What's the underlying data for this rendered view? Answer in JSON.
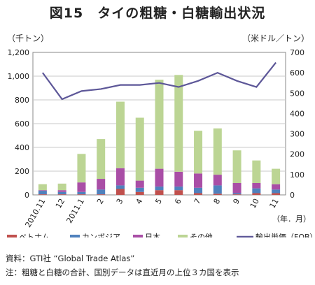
{
  "header": {
    "title": "図15　タイの粗糖・白糖輸出状況",
    "left_unit": "（千トン）",
    "right_unit": "（米ドル／トン）",
    "x_unit": "（年．月）"
  },
  "notes": {
    "source": "資料：GTI社 “Global Trade Atlas”",
    "note": "注：粗糖と白糖の合計、国別データは直近月の上位３カ国を表示"
  },
  "colors": {
    "vietnam": "#c0504d",
    "cambodia": "#4f81bd",
    "japan": "#a94ea6",
    "other": "#bcd594",
    "price_line": "#5d5798",
    "grid": "#c8c8c8",
    "axis": "#888888"
  },
  "chart_data": {
    "type": "bar",
    "stacked": true,
    "categories": [
      "2010.11",
      "12",
      "2011.1",
      "2",
      "3",
      "4",
      "5",
      "6",
      "7",
      "8",
      "9",
      "10",
      "11"
    ],
    "series": [
      {
        "name": "ベトナム",
        "values": [
          5,
          5,
          5,
          5,
          50,
          25,
          40,
          40,
          15,
          10,
          5,
          15,
          15
        ]
      },
      {
        "name": "カンボジア",
        "values": [
          30,
          20,
          20,
          40,
          30,
          35,
          30,
          30,
          45,
          70,
          10,
          40,
          30
        ]
      },
      {
        "name": "日本",
        "values": [
          5,
          15,
          80,
          90,
          145,
          60,
          150,
          125,
          120,
          90,
          85,
          45,
          45
        ]
      },
      {
        "name": "その他",
        "values": [
          50,
          55,
          240,
          335,
          560,
          530,
          750,
          815,
          360,
          390,
          275,
          190,
          130
        ]
      }
    ],
    "line_series": {
      "name": "輸出単価（FOB）",
      "values": [
        600,
        470,
        510,
        520,
        540,
        540,
        550,
        530,
        560,
        600,
        560,
        530,
        650
      ]
    },
    "ylim": [
      0,
      1200
    ],
    "yticks": [
      "0",
      "200",
      "400",
      "600",
      "800",
      "1,000",
      "1,200"
    ],
    "y2lim": [
      0,
      700
    ],
    "y2ticks": [
      "0",
      "100",
      "200",
      "300",
      "400",
      "500",
      "600",
      "700"
    ],
    "ylabel": "（千トン）",
    "y2label": "（米ドル／トン）",
    "xlabel": "（年．月）",
    "grid": true,
    "legend": "bottom"
  }
}
